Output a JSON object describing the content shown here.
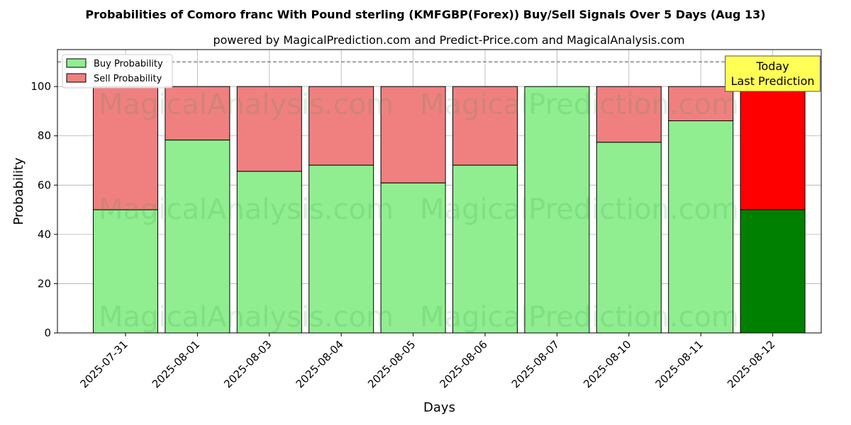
{
  "chart_data": {
    "type": "bar",
    "stacked": true,
    "title": "Probabilities of Comoro franc With Pound sterling (KMFGBP(Forex)) Buy/Sell Signals Over 5 Days (Aug 13)",
    "subtitle": "powered by MagicalPrediction.com and Predict-Price.com and MagicalAnalysis.com",
    "xlabel": "Days",
    "ylabel": "Probability",
    "ylim": [
      0,
      115
    ],
    "yticks": [
      0,
      20,
      40,
      60,
      80,
      100
    ],
    "grid": true,
    "legend_position": "top-left",
    "reference_line": {
      "y": 110,
      "style": "dashed"
    },
    "categories": [
      "2025-07-31",
      "2025-08-01",
      "2025-08-03",
      "2025-08-04",
      "2025-08-05",
      "2025-08-06",
      "2025-08-07",
      "2025-08-10",
      "2025-08-11",
      "2025-08-12"
    ],
    "series": [
      {
        "name": "Buy Probability",
        "color": "#90ee90",
        "values": [
          50,
          78.3,
          65.6,
          68.1,
          60.9,
          68.1,
          100,
          77.4,
          86.1,
          50
        ]
      },
      {
        "name": "Sell Probability",
        "color": "#f08080",
        "values": [
          50,
          21.7,
          34.4,
          31.9,
          39.1,
          31.9,
          0,
          22.6,
          13.9,
          50
        ]
      }
    ],
    "highlight": {
      "category": "2025-08-12",
      "buy_color": "#008000",
      "sell_color": "#ff0000"
    },
    "annotation": {
      "lines": [
        "Today",
        "Last Prediction"
      ],
      "category": "2025-08-12",
      "background": "#ffff55"
    },
    "watermarks": [
      "MagicalAnalysis.com",
      "MagicalPrediction.com",
      "MagicalAnalysis.com",
      "MagicalPrediction.com",
      "MagicalAnalysis.com",
      "MagicalPrediction.com"
    ]
  }
}
